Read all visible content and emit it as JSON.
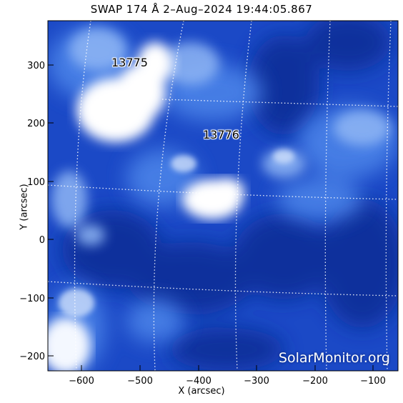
{
  "title": "SWAP 174 Å  2–Aug–2024 19:44:05.867",
  "xlabel": "X (arcsec)",
  "ylabel": "Y (arcsec)",
  "x_ticks": [
    "−600",
    "−500",
    "−400",
    "−300",
    "−200",
    "−100"
  ],
  "y_ticks": [
    "300",
    "200",
    "100",
    "0",
    "−100",
    "−200"
  ],
  "active_regions": [
    {
      "id": "13775"
    },
    {
      "id": "13776"
    }
  ],
  "watermark": "SolarMonitor.org",
  "colors": {
    "base": "#1a47c4",
    "bright": "#ffffff",
    "dark": "#0a2a8e",
    "grid": "#ffffff"
  }
}
